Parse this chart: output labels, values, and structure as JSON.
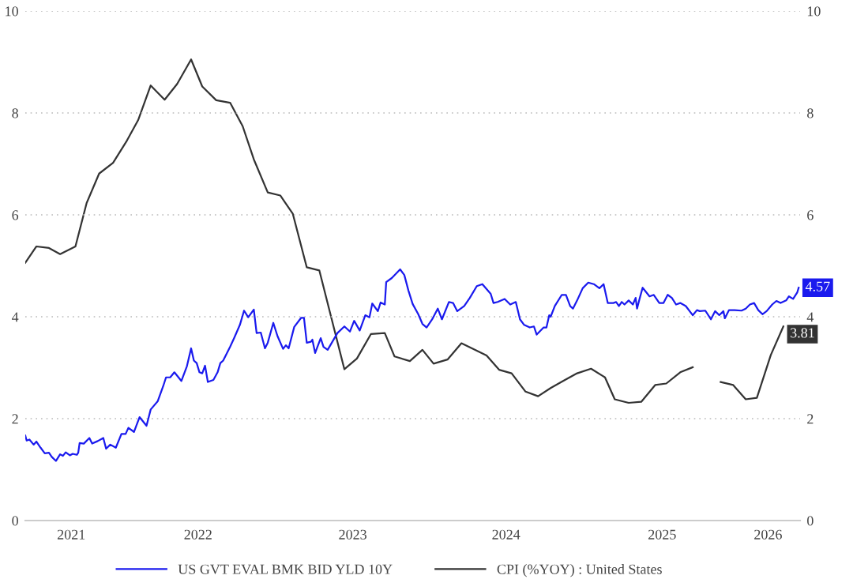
{
  "chart_data": {
    "type": "line",
    "xlim": [
      2020.6,
      2026.16
    ],
    "xticks": [
      {
        "value": 2020.93,
        "label": "2021"
      },
      {
        "value": 2021.84,
        "label": "2022"
      },
      {
        "value": 2022.95,
        "label": "2023"
      },
      {
        "value": 2024.05,
        "label": "2024"
      },
      {
        "value": 2025.17,
        "label": "2025"
      },
      {
        "value": 2025.93,
        "label": "2026"
      }
    ],
    "ylim": [
      0,
      10
    ],
    "yticks": [
      0,
      2,
      4,
      6,
      8,
      10
    ],
    "y2lim": [
      0,
      10
    ],
    "y2ticks": [
      0,
      2,
      4,
      6,
      8,
      10
    ],
    "grid": "y",
    "legend": "bottom",
    "line_style": "solid",
    "marker": "none",
    "series": [
      {
        "name": "US GVT EVAL BMK BID YLD 10Y",
        "color": "#1a1aee",
        "x": [
          2020.6,
          2020.61,
          2020.63,
          2020.66,
          2020.68,
          2020.71,
          2020.74,
          2020.77,
          2020.79,
          2020.82,
          2020.85,
          2020.87,
          2020.89,
          2020.92,
          2020.94,
          2020.97,
          2020.98,
          2020.99,
          2021.02,
          2021.06,
          2021.08,
          2021.12,
          2021.16,
          2021.18,
          2021.21,
          2021.25,
          2021.29,
          2021.32,
          2021.34,
          2021.38,
          2021.42,
          2021.47,
          2021.5,
          2021.55,
          2021.59,
          2021.61,
          2021.64,
          2021.67,
          2021.72,
          2021.76,
          2021.79,
          2021.81,
          2021.83,
          2021.85,
          2021.87,
          2021.89,
          2021.91,
          2021.95,
          2021.98,
          2022.0,
          2022.02,
          2022.07,
          2022.1,
          2022.14,
          2022.17,
          2022.2,
          2022.24,
          2022.26,
          2022.29,
          2022.32,
          2022.34,
          2022.38,
          2022.41,
          2022.45,
          2022.47,
          2022.49,
          2022.53,
          2022.58,
          2022.6,
          2022.62,
          2022.65,
          2022.66,
          2022.68,
          2022.72,
          2022.74,
          2022.77,
          2022.84,
          2022.89,
          2022.93,
          2022.96,
          2023.0,
          2023.04,
          2023.07,
          2023.09,
          2023.13,
          2023.15,
          2023.18,
          2023.19,
          2023.23,
          2023.29,
          2023.32,
          2023.35,
          2023.38,
          2023.42,
          2023.45,
          2023.48,
          2023.52,
          2023.56,
          2023.59,
          2023.64,
          2023.67,
          2023.7,
          2023.75,
          2023.79,
          2023.84,
          2023.88,
          2023.94,
          2023.96,
          2023.99,
          2024.04,
          2024.08,
          2024.12,
          2024.15,
          2024.18,
          2024.22,
          2024.25,
          2024.27,
          2024.32,
          2024.34,
          2024.36,
          2024.37,
          2024.4,
          2024.45,
          2024.48,
          2024.51,
          2024.53,
          2024.56,
          2024.6,
          2024.64,
          2024.68,
          2024.72,
          2024.75,
          2024.78,
          2024.82,
          2024.84,
          2024.86,
          2024.88,
          2024.9,
          2024.93,
          2024.96,
          2024.98,
          2024.99,
          2025.01,
          2025.03,
          2025.08,
          2025.11,
          2025.15,
          2025.18,
          2025.21,
          2025.24,
          2025.27,
          2025.3,
          2025.34,
          2025.39,
          2025.42,
          2025.44,
          2025.48,
          2025.52,
          2025.55,
          2025.58,
          2025.61,
          2025.62,
          2025.65,
          2025.69,
          2025.74,
          2025.77,
          2025.8,
          2025.83,
          2025.86,
          2025.89,
          2025.92,
          2025.96,
          2025.99,
          2026.02,
          2026.06,
          2026.08,
          2026.11,
          2026.14,
          2026.15
        ],
        "values": [
          1.67,
          1.57,
          1.59,
          1.49,
          1.55,
          1.43,
          1.32,
          1.33,
          1.25,
          1.17,
          1.3,
          1.27,
          1.34,
          1.28,
          1.31,
          1.29,
          1.33,
          1.52,
          1.51,
          1.62,
          1.51,
          1.56,
          1.62,
          1.41,
          1.49,
          1.43,
          1.7,
          1.7,
          1.82,
          1.74,
          2.03,
          1.86,
          2.18,
          2.34,
          2.64,
          2.81,
          2.81,
          2.91,
          2.74,
          3.03,
          3.38,
          3.14,
          3.09,
          2.91,
          2.89,
          3.04,
          2.72,
          2.76,
          2.91,
          3.09,
          3.14,
          3.41,
          3.59,
          3.84,
          4.12,
          3.99,
          4.14,
          3.68,
          3.69,
          3.38,
          3.49,
          3.88,
          3.62,
          3.37,
          3.44,
          3.38,
          3.8,
          3.98,
          3.98,
          3.49,
          3.51,
          3.55,
          3.29,
          3.58,
          3.41,
          3.35,
          3.68,
          3.81,
          3.71,
          3.92,
          3.73,
          4.03,
          3.99,
          4.26,
          4.11,
          4.28,
          4.24,
          4.68,
          4.76,
          4.93,
          4.82,
          4.51,
          4.25,
          4.05,
          3.86,
          3.79,
          3.95,
          4.16,
          3.95,
          4.29,
          4.27,
          4.11,
          4.21,
          4.37,
          4.6,
          4.64,
          4.45,
          4.27,
          4.29,
          4.35,
          4.24,
          4.29,
          3.95,
          3.84,
          3.79,
          3.81,
          3.65,
          3.79,
          3.79,
          4.03,
          4.0,
          4.21,
          4.43,
          4.43,
          4.21,
          4.16,
          4.32,
          4.56,
          4.67,
          4.64,
          4.56,
          4.64,
          4.27,
          4.27,
          4.29,
          4.21,
          4.29,
          4.24,
          4.32,
          4.24,
          4.37,
          4.16,
          4.37,
          4.57,
          4.4,
          4.43,
          4.27,
          4.27,
          4.43,
          4.37,
          4.24,
          4.27,
          4.21,
          4.03,
          4.13,
          4.11,
          4.12,
          3.95,
          4.11,
          4.03,
          4.11,
          3.97,
          4.13,
          4.13,
          4.12,
          4.16,
          4.24,
          4.27,
          4.13,
          4.05,
          4.11,
          4.24,
          4.31,
          4.27,
          4.32,
          4.4,
          4.35,
          4.48,
          4.57
        ]
      },
      {
        "name": "CPI (%YOY) : United States",
        "color": "#333333",
        "axis": "y2",
        "x": [
          2020.6,
          2020.68,
          2020.77,
          2020.85,
          2020.96,
          2021.04,
          2021.13,
          2021.23,
          2021.33,
          2021.41,
          2021.5,
          2021.6,
          2021.69,
          2021.79,
          2021.87,
          2021.97,
          2022.07,
          2022.16,
          2022.24,
          2022.34,
          2022.43,
          2022.52,
          2022.62,
          2022.71,
          2022.89,
          2022.98,
          2023.08,
          2023.18,
          2023.25,
          2023.36,
          2023.45,
          2023.53,
          2023.63,
          2023.73,
          2023.82,
          2023.91,
          2024.0,
          2024.09,
          2024.19,
          2024.28,
          2024.37,
          2024.46,
          2024.56,
          2024.66,
          2024.76,
          2024.83,
          2024.93,
          2025.02,
          2025.12,
          2025.2,
          2025.3,
          2025.39,
          2025.49,
          2025.59,
          2025.68,
          2025.77,
          2025.85,
          2025.95,
          2026.04
        ],
        "values": [
          5.06,
          5.38,
          5.35,
          5.23,
          5.38,
          6.23,
          6.81,
          7.02,
          7.46,
          7.86,
          8.54,
          8.26,
          8.57,
          9.05,
          8.52,
          8.25,
          8.2,
          7.74,
          7.09,
          6.44,
          6.38,
          6.02,
          4.97,
          4.91,
          2.97,
          3.18,
          3.66,
          3.68,
          3.22,
          3.13,
          3.35,
          3.08,
          3.16,
          3.48,
          3.36,
          3.24,
          2.96,
          2.89,
          2.53,
          2.44,
          2.6,
          2.74,
          2.89,
          2.98,
          2.81,
          2.38,
          2.31,
          2.33,
          2.66,
          2.69,
          2.91,
          3.01,
          null,
          2.72,
          2.66,
          2.38,
          2.41,
          3.25,
          3.81
        ]
      }
    ],
    "annotations": [
      {
        "text": "4.57",
        "x": 2026.15,
        "y": 4.57
      },
      {
        "text": "3.81",
        "x": 2026.04,
        "y": 3.81
      }
    ]
  }
}
